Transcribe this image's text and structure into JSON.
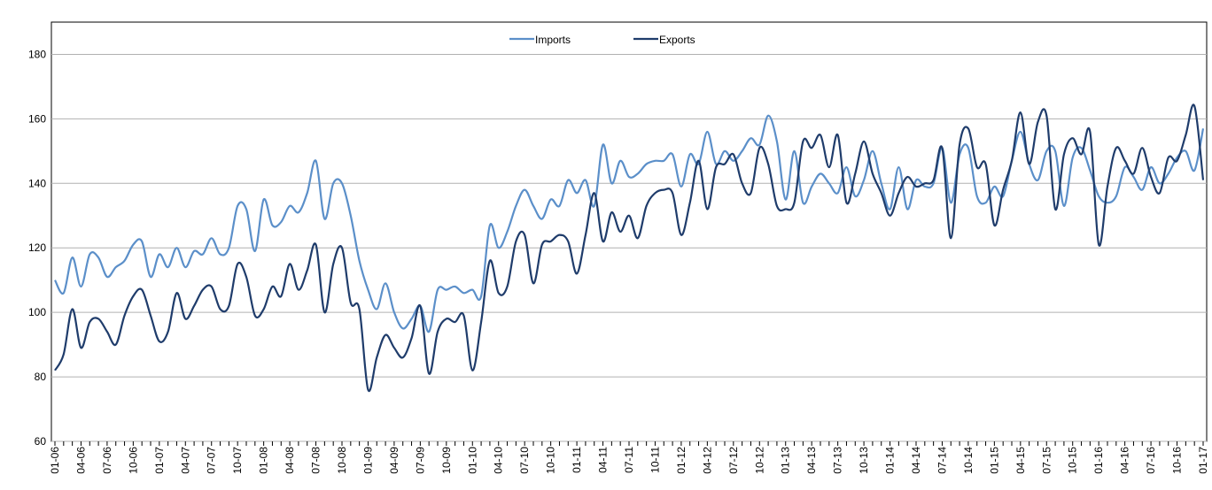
{
  "chart_data": {
    "type": "line",
    "categories": [
      "01-06",
      null,
      null,
      "04-06",
      null,
      null,
      "07-06",
      null,
      null,
      "10-06",
      null,
      null,
      "01-07",
      null,
      null,
      "04-07",
      null,
      null,
      "07-07",
      null,
      null,
      "10-07",
      null,
      null,
      "01-08",
      null,
      null,
      "04-08",
      null,
      null,
      "07-08",
      null,
      null,
      "10-08",
      null,
      null,
      "01-09",
      null,
      null,
      "04-09",
      null,
      null,
      "07-09",
      null,
      null,
      "10-09",
      null,
      null,
      "01-10",
      null,
      null,
      "04-10",
      null,
      null,
      "07-10",
      null,
      null,
      "10-10",
      null,
      null,
      "01-11",
      null,
      null,
      "04-11",
      null,
      null,
      "07-11",
      null,
      null,
      "10-11",
      null,
      null,
      "01-12",
      null,
      null,
      "04-12",
      null,
      null,
      "07-12",
      null,
      null,
      "10-12",
      null,
      null,
      "01-13",
      null,
      null,
      "04-13",
      null,
      null,
      "07-13",
      null,
      null,
      "10-13",
      null,
      null,
      "01-14",
      null,
      null,
      "04-14",
      null,
      null,
      "07-14",
      null,
      null,
      "10-14",
      null,
      null,
      "01-15",
      null,
      null,
      "04-15",
      null,
      null,
      "07-15",
      null,
      null,
      "10-15",
      null,
      null,
      "01-16",
      null,
      null,
      "04-16",
      null,
      null,
      "07-16",
      null,
      null,
      "10-16",
      null,
      null,
      "01-17"
    ],
    "series": [
      {
        "name": "Imports",
        "color": "#5b8fc9",
        "values": [
          110,
          106,
          117,
          108,
          118,
          117,
          111,
          114,
          116,
          121,
          122,
          111,
          118,
          114,
          120,
          114,
          119,
          118,
          123,
          118,
          120,
          133,
          132,
          119,
          135,
          127,
          128,
          133,
          131,
          137,
          147,
          129,
          140,
          140,
          130,
          116,
          107,
          101,
          109,
          100,
          95,
          98,
          102,
          94,
          107,
          107,
          108,
          106,
          107,
          105,
          127,
          120,
          125,
          133,
          138,
          133,
          129,
          135,
          133,
          141,
          137,
          141,
          133,
          152,
          140,
          147,
          142,
          143,
          146,
          147,
          147,
          149,
          139,
          149,
          146,
          156,
          146,
          150,
          147,
          150,
          154,
          152,
          161,
          153,
          135,
          150,
          134,
          139,
          143,
          140,
          137,
          145,
          136,
          141,
          150,
          140,
          132,
          145,
          132,
          141,
          139,
          140,
          151,
          134,
          149,
          151,
          136,
          134,
          139,
          136,
          147,
          156,
          146,
          141,
          150,
          150,
          133,
          148,
          151,
          144,
          136,
          134,
          136,
          145,
          142,
          138,
          145,
          140,
          143,
          148,
          150,
          144,
          157
        ]
      },
      {
        "name": "Exports",
        "color": "#1f3c6b",
        "values": [
          82,
          87,
          101,
          89,
          97,
          98,
          94,
          90,
          99,
          105,
          107,
          99,
          91,
          94,
          106,
          98,
          102,
          107,
          108,
          101,
          102,
          115,
          111,
          99,
          101,
          108,
          105,
          115,
          107,
          113,
          121,
          100,
          115,
          120,
          103,
          101,
          76,
          86,
          93,
          89,
          86,
          92,
          102,
          81,
          94,
          98,
          97,
          99,
          82,
          97,
          116,
          106,
          108,
          122,
          124,
          109,
          121,
          122,
          124,
          122,
          112,
          124,
          137,
          122,
          131,
          125,
          130,
          123,
          133,
          137,
          138,
          137,
          124,
          134,
          147,
          132,
          145,
          146,
          149,
          140,
          137,
          151,
          146,
          133,
          132,
          134,
          153,
          151,
          155,
          145,
          155,
          134,
          143,
          153,
          143,
          137,
          130,
          137,
          142,
          139,
          140,
          141,
          151,
          123,
          152,
          157,
          145,
          146,
          127,
          138,
          147,
          162,
          146,
          159,
          161,
          132,
          149,
          154,
          149,
          156,
          121,
          139,
          151,
          147,
          143,
          151,
          142,
          137,
          148,
          147,
          155,
          164,
          141
        ]
      }
    ],
    "ylim": [
      60,
      190
    ],
    "yticks": [
      60,
      80,
      100,
      120,
      140,
      160,
      180
    ],
    "grid": true,
    "legend": "top"
  }
}
